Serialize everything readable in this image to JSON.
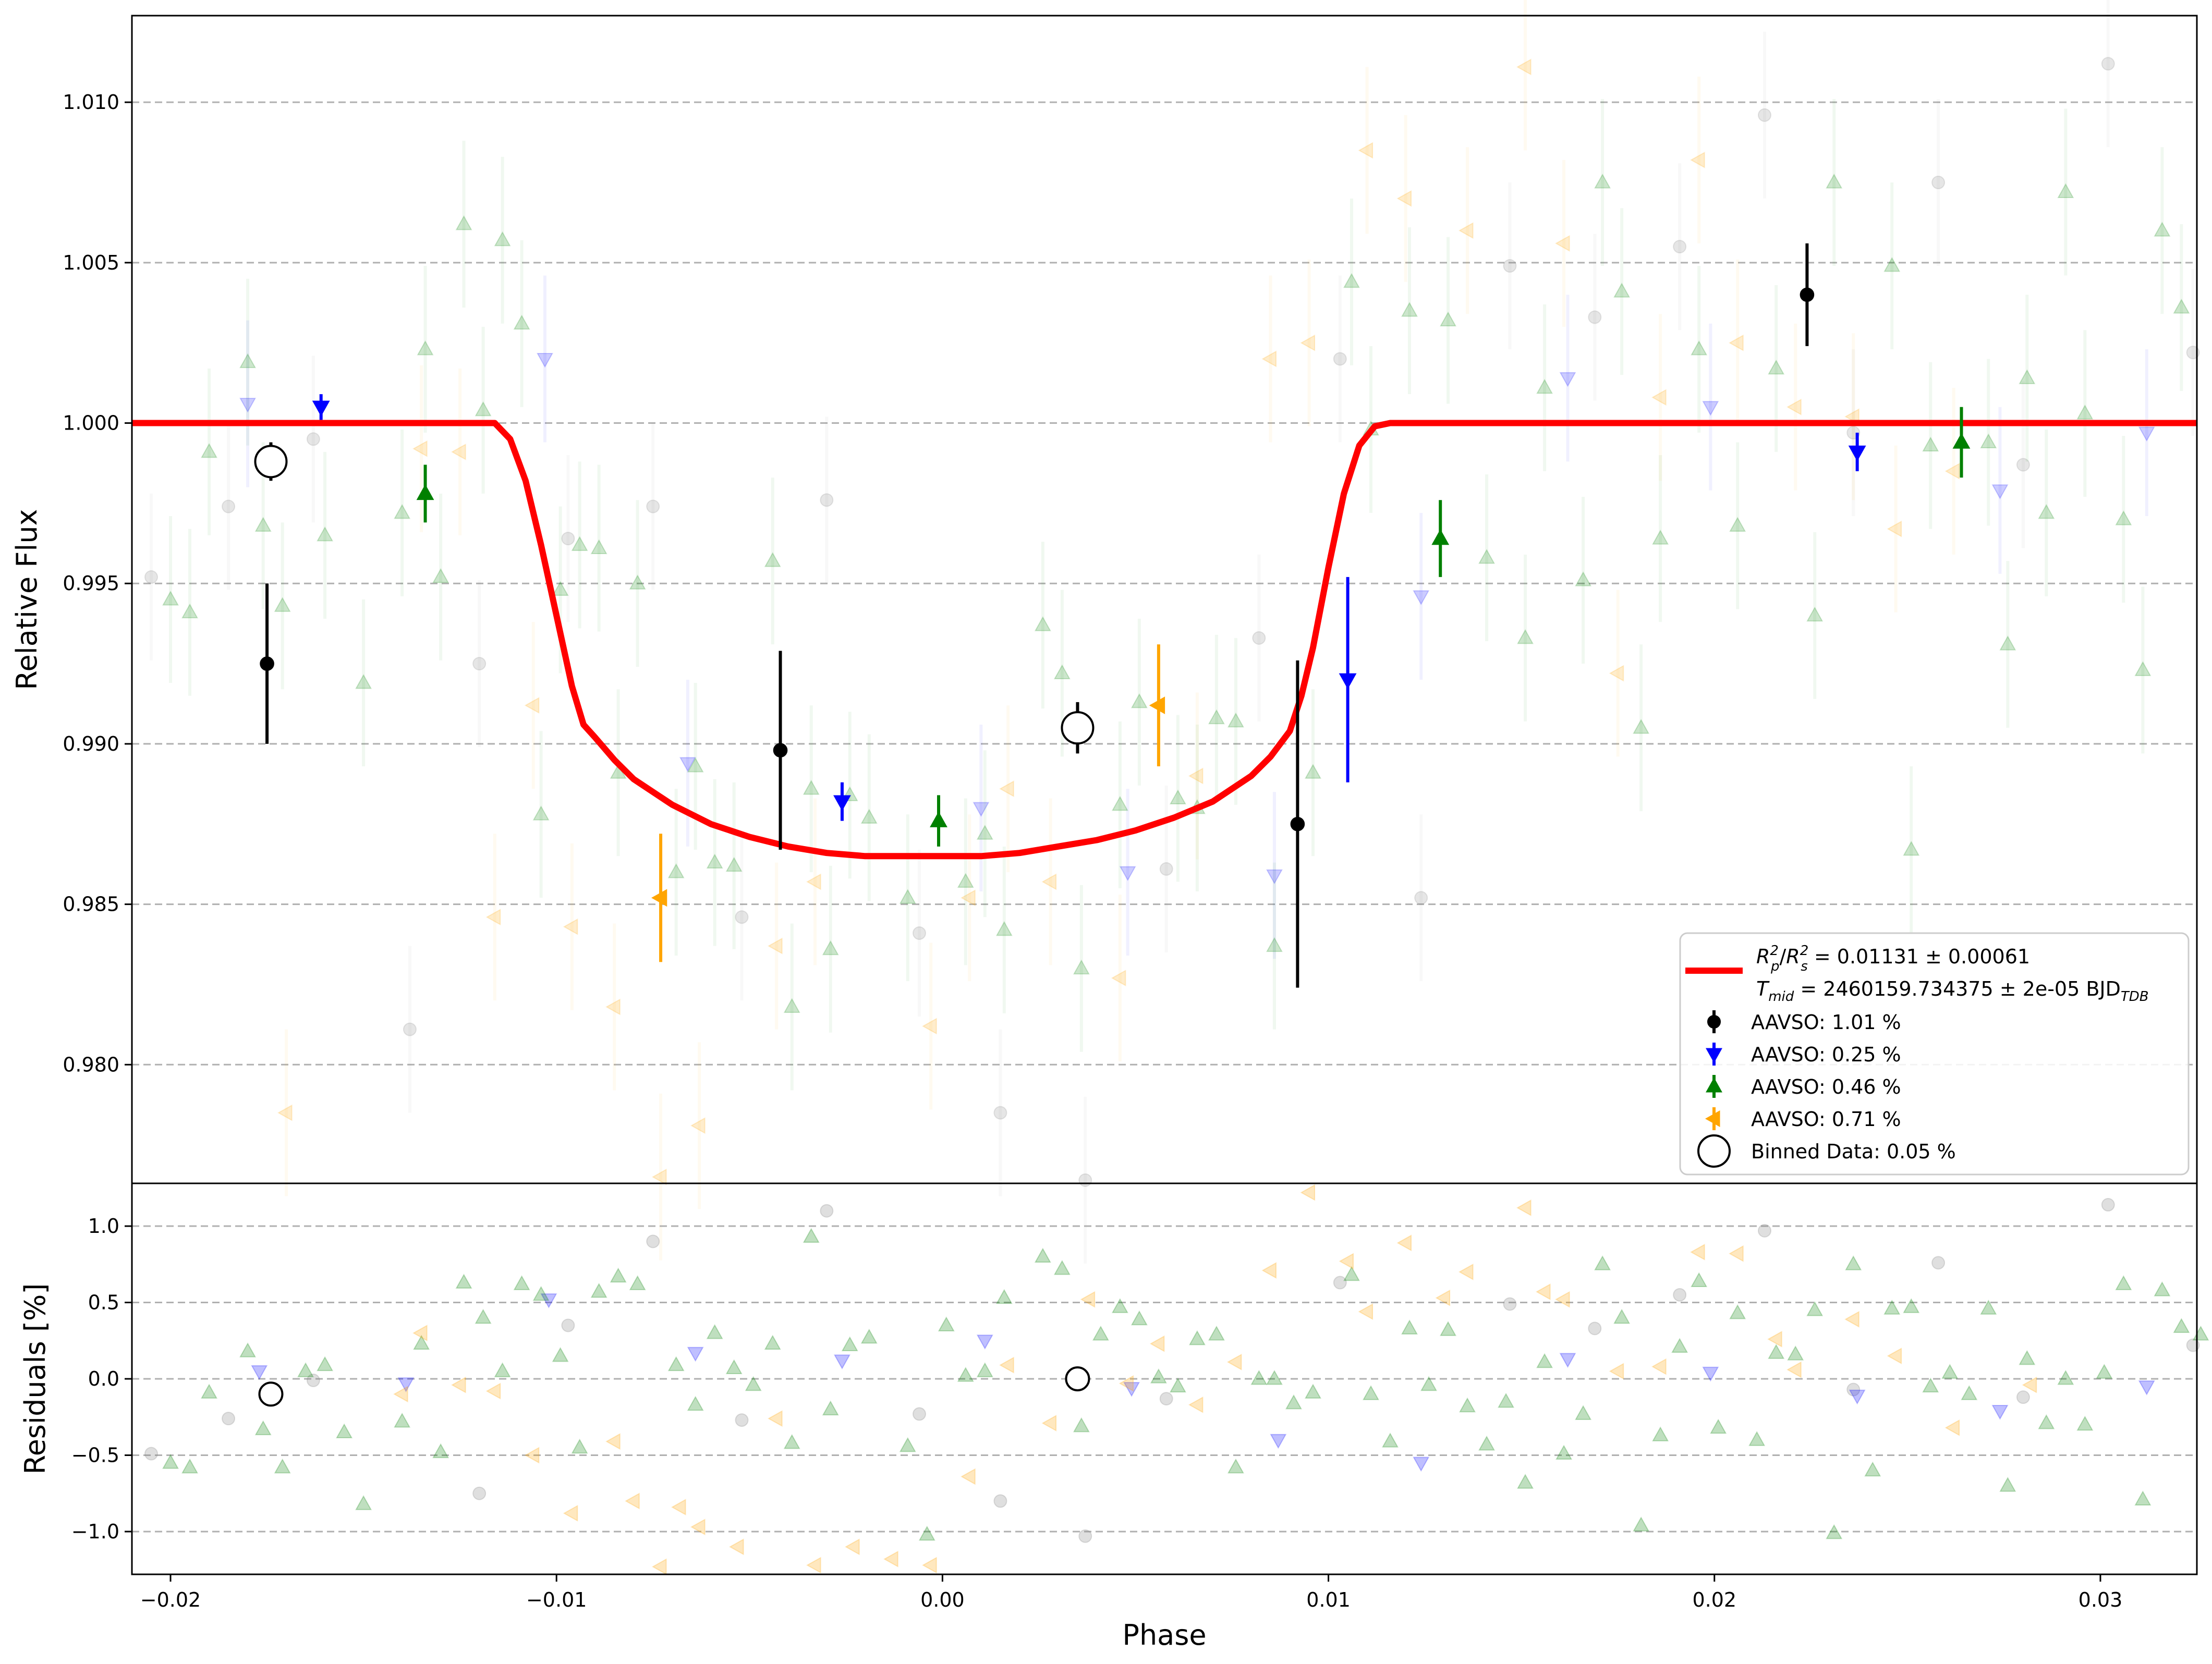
{
  "chart_data": [
    {
      "type": "scatter",
      "panel": "flux",
      "title": "",
      "xlabel": "",
      "ylabel": "Relative Flux",
      "xlim": [
        -0.021,
        0.0325
      ],
      "ylim": [
        0.9763,
        1.0127
      ],
      "grid": "horizontal dashed",
      "legend": "lower-right",
      "y_ticks": [
        0.98,
        0.985,
        0.99,
        0.995,
        1.0,
        1.005,
        1.01
      ],
      "y_tick_labels": [
        "0.980",
        "0.985",
        "0.990",
        "0.995",
        "1.000",
        "1.005",
        "1.010"
      ],
      "model": {
        "label": "R_p^2/R_s^2 = 0.01131 ± 0.00061",
        "label_line2": "T_mid = 2460159.734375 ± 2e-05 BJD_TDB",
        "color": "#ff0000",
        "x": [
          -0.021,
          -0.0116,
          -0.0112,
          -0.0108,
          -0.0104,
          -0.01,
          -0.0096,
          -0.0093,
          -0.009,
          -0.0085,
          -0.008,
          -0.007,
          -0.006,
          -0.005,
          -0.004,
          -0.003,
          -0.002,
          -0.001,
          0.0,
          0.001,
          0.002,
          0.003,
          0.004,
          0.005,
          0.006,
          0.007,
          0.008,
          0.0085,
          0.009,
          0.0093,
          0.0096,
          0.01,
          0.0104,
          0.0108,
          0.0112,
          0.0116,
          0.0325
        ],
        "y": [
          1.0,
          1.0,
          0.9995,
          0.9982,
          0.9962,
          0.994,
          0.9918,
          0.9906,
          0.9902,
          0.9895,
          0.9889,
          0.9881,
          0.9875,
          0.9871,
          0.9868,
          0.9866,
          0.9865,
          0.9865,
          0.9865,
          0.9865,
          0.9866,
          0.9868,
          0.987,
          0.9873,
          0.9877,
          0.9882,
          0.989,
          0.9896,
          0.9904,
          0.9915,
          0.993,
          0.9955,
          0.9978,
          0.9993,
          0.9999,
          1.0,
          1.0
        ]
      },
      "series": [
        {
          "name": "AAVSO: 1.01 %",
          "marker": "circle",
          "color": "#000000",
          "x": [
            -0.0175,
            -0.0042,
            0.0092,
            0.0224
          ],
          "y": [
            0.9925,
            0.9898,
            0.9875,
            1.004
          ],
          "yerr": [
            0.0025,
            0.0031,
            0.0051,
            0.0016
          ]
        },
        {
          "name": "AAVSO: 0.25 %",
          "marker": "triangle-down",
          "color": "#0000ff",
          "x": [
            -0.0161,
            -0.0026,
            0.0105,
            0.0237
          ],
          "y": [
            1.0005,
            0.9882,
            0.992,
            0.9991
          ],
          "yerr": [
            0.0004,
            0.0006,
            0.0032,
            0.0006
          ]
        },
        {
          "name": "AAVSO: 0.46 %",
          "marker": "triangle-up",
          "color": "#008000",
          "x": [
            -0.0134,
            -0.0001,
            0.0129,
            0.0264
          ],
          "y": [
            0.9978,
            0.9876,
            0.9964,
            0.9994
          ],
          "yerr": [
            0.0009,
            0.0008,
            0.0012,
            0.0011
          ]
        },
        {
          "name": "AAVSO: 0.71 %",
          "marker": "triangle-left",
          "color": "#ffa500",
          "x": [
            -0.0073,
            0.0056
          ],
          "y": [
            0.9852,
            0.9912
          ],
          "yerr": [
            0.002,
            0.0019
          ]
        },
        {
          "name": "Binned Data: 0.05 %",
          "marker": "open-circle",
          "color": "#000000",
          "x": [
            -0.0174,
            0.0035
          ],
          "y": [
            0.9988,
            0.9905
          ],
          "yerr": [
            0.0006,
            0.0008
          ]
        }
      ],
      "background_points": {
        "gray": {
          "color": "#808080",
          "x": [
            -0.0205,
            -0.0185,
            -0.0163,
            -0.0138,
            -0.012,
            -0.0097,
            -0.0075,
            -0.0052,
            -0.003,
            -0.0006,
            0.0015,
            0.0037,
            0.0058,
            0.0082,
            0.0103,
            0.0124,
            0.0147,
            0.0169,
            0.0191,
            0.0213,
            0.0236,
            0.0258,
            0.028,
            0.0302,
            0.0324
          ],
          "y": [
            0.9952,
            0.9974,
            0.9995,
            0.9811,
            0.9925,
            0.9964,
            0.9974,
            0.9846,
            0.9976,
            0.9841,
            0.9785,
            0.9764,
            0.9861,
            0.9933,
            1.002,
            0.9852,
            1.0049,
            1.0033,
            1.0055,
            1.0096,
            0.9997,
            1.0075,
            0.9987,
            1.0112,
            1.0022
          ]
        },
        "blue": {
          "color": "#0000ff",
          "x": [
            -0.018,
            -0.0103,
            -0.0066,
            0.001,
            0.0048,
            0.0086,
            0.0124,
            0.0162,
            0.0199,
            0.0274,
            0.0312
          ],
          "y": [
            1.0006,
            1.002,
            0.9894,
            0.988,
            0.986,
            0.9859,
            0.9946,
            1.0014,
            1.0005,
            0.9979,
            0.9997
          ]
        },
        "green": {
          "color": "#008000",
          "x": [
            -0.02,
            -0.0195,
            -0.019,
            -0.018,
            -0.0176,
            -0.0171,
            -0.016,
            -0.015,
            -0.014,
            -0.0134,
            -0.013,
            -0.0124,
            -0.0119,
            -0.0114,
            -0.0109,
            -0.0104,
            -0.0099,
            -0.0094,
            -0.0089,
            -0.0084,
            -0.0079,
            -0.0069,
            -0.0064,
            -0.0059,
            -0.0054,
            -0.0044,
            -0.0039,
            -0.0034,
            -0.0029,
            -0.0024,
            -0.0019,
            -0.0009,
            0.0006,
            0.0011,
            0.0016,
            0.0026,
            0.0031,
            0.0036,
            0.0046,
            0.0051,
            0.0061,
            0.0066,
            0.0071,
            0.0076,
            0.0086,
            0.0096,
            0.0106,
            0.0111,
            0.0121,
            0.0131,
            0.0141,
            0.0151,
            0.0156,
            0.0166,
            0.0171,
            0.0176,
            0.0181,
            0.0186,
            0.0196,
            0.0206,
            0.0216,
            0.0226,
            0.0231,
            0.0246,
            0.0251,
            0.0256,
            0.0271,
            0.0276,
            0.0281,
            0.0286,
            0.0291,
            0.0296,
            0.0306,
            0.0311,
            0.0316,
            0.0321
          ],
          "y": [
            0.9945,
            0.9941,
            0.9991,
            1.0019,
            0.9968,
            0.9943,
            0.9965,
            0.9919,
            0.9972,
            1.0023,
            0.9952,
            1.0062,
            1.0004,
            1.0057,
            1.0031,
            0.9878,
            0.9948,
            0.9962,
            0.9961,
            0.9891,
            0.995,
            0.986,
            0.9893,
            0.9863,
            0.9862,
            0.9957,
            0.9818,
            0.9886,
            0.9836,
            0.9884,
            0.9877,
            0.9852,
            0.9857,
            0.9872,
            0.9842,
            0.9937,
            0.9922,
            0.983,
            0.9881,
            0.9913,
            0.9883,
            0.988,
            0.9908,
            0.9907,
            0.9837,
            0.9891,
            1.0044,
            0.9998,
            1.0035,
            1.0032,
            0.9958,
            0.9933,
            1.0011,
            0.9951,
            1.0075,
            1.0041,
            0.9905,
            0.9964,
            1.0023,
            0.9968,
            1.0017,
            0.994,
            1.0075,
            1.0049,
            0.9867,
            0.9993,
            0.9994,
            0.9931,
            1.0014,
            0.9972,
            1.0072,
            1.0003,
            0.997,
            0.9923,
            1.006,
            1.0036
          ]
        },
        "orange": {
          "color": "#ffa500",
          "x": [
            -0.017,
            -0.0135,
            -0.0125,
            -0.0116,
            -0.0106,
            -0.0096,
            -0.0085,
            -0.0073,
            -0.0063,
            -0.0043,
            -0.0033,
            -0.0003,
            0.0007,
            0.0017,
            0.0028,
            0.0046,
            0.0066,
            0.0085,
            0.0095,
            0.011,
            0.012,
            0.0136,
            0.0151,
            0.0161,
            0.0175,
            0.0186,
            0.0196,
            0.0206,
            0.0221,
            0.0236,
            0.0247,
            0.0262
          ],
          "y": [
            0.9785,
            0.9992,
            0.9991,
            0.9846,
            0.9912,
            0.9843,
            0.9818,
            0.9765,
            0.9781,
            0.9837,
            0.9857,
            0.9812,
            0.9852,
            0.9886,
            0.9857,
            0.9827,
            0.989,
            1.002,
            1.0025,
            1.0085,
            1.007,
            1.006,
            1.0111,
            1.0056,
            0.9922,
            1.0008,
            1.0082,
            1.0025,
            1.0005,
            1.0002,
            0.9967,
            0.9985
          ]
        }
      }
    },
    {
      "type": "scatter",
      "panel": "residuals",
      "title": "",
      "xlabel": "Phase",
      "ylabel": "Residuals [%]",
      "xlim": [
        -0.021,
        0.0325
      ],
      "ylim": [
        -1.28,
        1.28
      ],
      "grid": "horizontal dashed",
      "x_ticks": [
        -0.02,
        -0.01,
        0.0,
        0.01,
        0.02,
        0.03
      ],
      "x_tick_labels": [
        "−0.02",
        "−0.01",
        "0.00",
        "0.01",
        "0.02",
        "0.03"
      ],
      "y_ticks": [
        -1.0,
        -0.5,
        0.0,
        0.5,
        1.0
      ],
      "y_tick_labels": [
        "−1.0",
        "−0.5",
        "0.0",
        "0.5",
        "1.0"
      ],
      "series": [
        {
          "name": "gray",
          "color": "#808080",
          "marker": "circle",
          "x": [
            -0.0205,
            -0.0185,
            -0.0163,
            -0.012,
            -0.0097,
            -0.0075,
            -0.0052,
            -0.003,
            -0.0006,
            0.0015,
            0.0037,
            0.0058,
            0.0103,
            0.0147,
            0.0169,
            0.0191,
            0.0213,
            0.0236,
            0.0258,
            0.028,
            0.0302,
            0.0324
          ],
          "y": [
            -0.49,
            -0.26,
            -0.01,
            -0.75,
            0.35,
            0.9,
            -0.27,
            1.1,
            -0.23,
            -0.8,
            -1.03,
            -0.13,
            0.63,
            0.49,
            0.33,
            0.55,
            0.97,
            -0.07,
            0.76,
            -0.12,
            1.14,
            0.22
          ]
        },
        {
          "name": "blue",
          "color": "#0000ff",
          "marker": "triangle-down",
          "x": [
            -0.0177,
            -0.0139,
            -0.0102,
            -0.0064,
            -0.0026,
            0.0011,
            0.0049,
            0.0087,
            0.0124,
            0.0162,
            0.0199,
            0.0237,
            0.0274,
            0.0312
          ],
          "y": [
            0.05,
            -0.03,
            0.52,
            0.17,
            0.12,
            0.25,
            -0.06,
            -0.4,
            -0.55,
            0.13,
            0.04,
            -0.11,
            -0.21,
            -0.05
          ]
        },
        {
          "name": "green",
          "color": "#008000",
          "marker": "triangle-up",
          "x": [
            -0.02,
            -0.0195,
            -0.019,
            -0.018,
            -0.0176,
            -0.0171,
            -0.0165,
            -0.016,
            -0.0155,
            -0.015,
            -0.014,
            -0.0135,
            -0.013,
            -0.0124,
            -0.0119,
            -0.0114,
            -0.0109,
            -0.0104,
            -0.0099,
            -0.0094,
            -0.0089,
            -0.0084,
            -0.0079,
            -0.0069,
            -0.0064,
            -0.0059,
            -0.0054,
            -0.0049,
            -0.0044,
            -0.0039,
            -0.0034,
            -0.0029,
            -0.0024,
            -0.0019,
            -0.0009,
            -0.0004,
            0.0001,
            0.0006,
            0.0011,
            0.0016,
            0.0026,
            0.0031,
            0.0036,
            0.0041,
            0.0046,
            0.0051,
            0.0056,
            0.0061,
            0.0066,
            0.0071,
            0.0076,
            0.0082,
            0.0086,
            0.0091,
            0.0096,
            0.0106,
            0.0111,
            0.0116,
            0.0121,
            0.0126,
            0.0131,
            0.0136,
            0.0141,
            0.0146,
            0.0151,
            0.0156,
            0.0161,
            0.0166,
            0.0171,
            0.0176,
            0.0181,
            0.0186,
            0.0191,
            0.0196,
            0.0201,
            0.0206,
            0.0211,
            0.0216,
            0.0221,
            0.0226,
            0.0231,
            0.0236,
            0.0241,
            0.0246,
            0.0251,
            0.0256,
            0.0261,
            0.0266,
            0.0271,
            0.0276,
            0.0281,
            0.0286,
            0.0291,
            0.0296,
            0.0301,
            0.0306,
            0.0311,
            0.0316,
            0.0321,
            0.0326
          ],
          "y": [
            -0.55,
            -0.58,
            -0.09,
            0.18,
            -0.33,
            -0.58,
            0.05,
            0.09,
            -0.35,
            -0.82,
            -0.28,
            0.23,
            -0.48,
            0.63,
            0.4,
            0.05,
            0.62,
            0.55,
            0.15,
            -0.45,
            0.57,
            0.67,
            0.62,
            0.09,
            -0.17,
            0.3,
            0.07,
            -0.04,
            0.23,
            -0.42,
            0.93,
            -0.2,
            0.22,
            0.27,
            -0.44,
            -1.02,
            0.35,
            0.02,
            0.05,
            0.53,
            0.8,
            0.72,
            -0.31,
            0.29,
            0.47,
            0.39,
            0.01,
            -0.05,
            0.26,
            0.29,
            -0.58,
            0.0,
            0.0,
            -0.16,
            -0.09,
            0.68,
            -0.1,
            -0.41,
            0.33,
            -0.04,
            0.32,
            -0.18,
            -0.43,
            -0.15,
            -0.68,
            0.11,
            -0.49,
            -0.23,
            0.75,
            0.4,
            -0.96,
            -0.37,
            0.21,
            0.64,
            -0.32,
            0.43,
            -0.4,
            0.17,
            0.16,
            0.45,
            -1.01,
            0.75,
            -0.6,
            0.46,
            0.47,
            -0.05,
            0.04,
            -0.1,
            0.46,
            -0.7,
            0.13,
            -0.29,
            0.0,
            -0.3,
            0.04,
            0.62,
            -0.79,
            0.58,
            0.34,
            0.29
          ]
        },
        {
          "name": "orange",
          "color": "#ffa500",
          "marker": "triangle-left",
          "x": [
            -0.014,
            -0.0135,
            -0.0125,
            -0.0116,
            -0.0106,
            -0.0096,
            -0.0085,
            -0.008,
            -0.0073,
            -0.0068,
            -0.0063,
            -0.0053,
            -0.0043,
            -0.0033,
            -0.0023,
            -0.0013,
            -0.0003,
            0.0007,
            0.0017,
            0.0028,
            0.0038,
            0.0048,
            0.0056,
            0.0066,
            0.0076,
            0.0085,
            0.0095,
            0.0105,
            0.011,
            0.012,
            0.013,
            0.0136,
            0.0151,
            0.0156,
            0.0161,
            0.0175,
            0.0186,
            0.0196,
            0.0206,
            0.0216,
            0.0221,
            0.0236,
            0.0247,
            0.0262,
            0.0282
          ],
          "y": [
            -0.1,
            0.3,
            -0.04,
            -0.08,
            -0.5,
            -0.88,
            -0.41,
            -0.8,
            -1.23,
            -0.84,
            -0.97,
            -1.1,
            -0.26,
            -1.22,
            -1.1,
            -1.18,
            -1.22,
            -0.64,
            0.09,
            -0.29,
            0.52,
            -0.03,
            0.23,
            -0.17,
            0.11,
            0.71,
            1.22,
            0.77,
            0.44,
            0.89,
            0.53,
            0.7,
            1.12,
            0.57,
            0.52,
            0.05,
            0.08,
            0.83,
            0.82,
            0.26,
            0.06,
            0.39,
            0.15,
            -0.32,
            -0.04
          ]
        },
        {
          "name": "binned",
          "color": "#000000",
          "marker": "open-circle",
          "x": [
            -0.0174,
            0.0035
          ],
          "y": [
            -0.1,
            0.0
          ]
        }
      ]
    }
  ],
  "legend": {
    "model_label_main": "R",
    "model_label_text": " = 0.01131 ± 0.00061",
    "tmid_label_main": "T",
    "tmid_label_sub": "mid",
    "tmid_label_text": " = 2460159.734375 ± 2e-05 BJD",
    "tmid_label_unit_sub": "TDB",
    "entries": [
      "AAVSO: 1.01 %",
      "AAVSO: 0.25 %",
      "AAVSO: 0.46 %",
      "AAVSO: 0.71 %",
      "Binned Data: 0.05 %"
    ]
  }
}
